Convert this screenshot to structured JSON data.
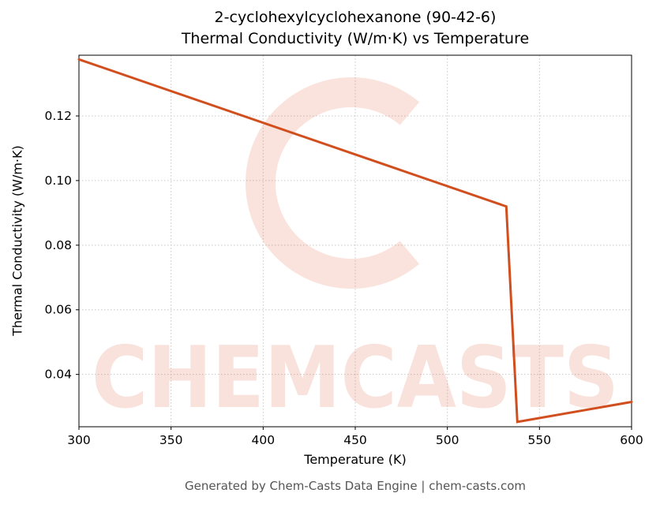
{
  "chart_data": {
    "type": "line",
    "title_line1": "2-cyclohexylcyclohexanone (90-42-6)",
    "title_line2": "Thermal Conductivity (W/m·K) vs Temperature",
    "xlabel": "Temperature (K)",
    "ylabel": "Thermal Conductivity (W/m·K)",
    "xlim": [
      300,
      600
    ],
    "ylim": [
      0.0238,
      0.1388
    ],
    "x_ticks": [
      300,
      350,
      400,
      450,
      500,
      550,
      600
    ],
    "y_ticks": [
      0.04,
      0.06,
      0.08,
      0.1,
      0.12
    ],
    "grid": true,
    "legend": "none",
    "series": [
      {
        "name": "thermal-conductivity",
        "color": "#d14f1e",
        "points": [
          [
            300,
            0.1375
          ],
          [
            532,
            0.092
          ],
          [
            538,
            0.0253
          ],
          [
            600,
            0.0315
          ]
        ]
      }
    ]
  },
  "watermark": {
    "text": "CHEMCASTS",
    "color": "#e0502c",
    "opacity": 0.16
  },
  "footer": {
    "text": "Generated by Chem-Casts Data Engine | chem-casts.com"
  }
}
